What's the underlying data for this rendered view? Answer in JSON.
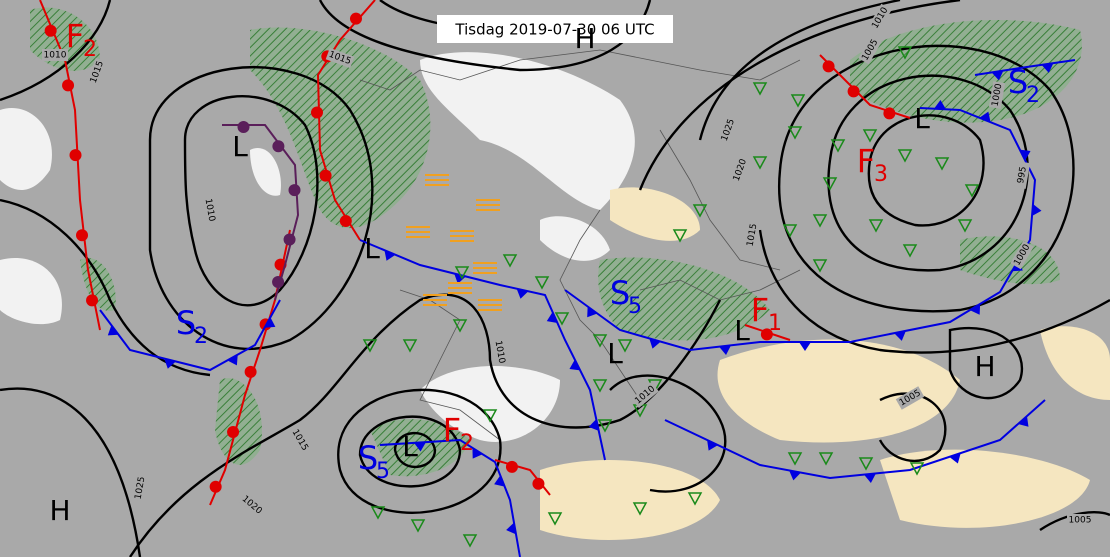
{
  "header": {
    "title": "Tisdag 2019-07-30 06 UTC"
  },
  "pressure_centers": [
    {
      "label": "L"
    },
    {
      "label": "L"
    },
    {
      "label": "L"
    },
    {
      "label": "L"
    },
    {
      "label": "L"
    },
    {
      "label": "L"
    },
    {
      "label": "H"
    },
    {
      "label": "H"
    },
    {
      "label": "H"
    }
  ],
  "front_labels": [
    {
      "text": "F",
      "sub": "2",
      "color": "#e00000"
    },
    {
      "text": "S",
      "sub": "2",
      "color": "#0000e0"
    },
    {
      "text": "S",
      "sub": "5",
      "color": "#0000e0"
    },
    {
      "text": "F",
      "sub": "1",
      "color": "#e00000"
    },
    {
      "text": "F",
      "sub": "3",
      "color": "#e00000"
    },
    {
      "text": "S",
      "sub": "2",
      "color": "#0000e0"
    },
    {
      "text": "F",
      "sub": "2",
      "color": "#e00000"
    },
    {
      "text": "S",
      "sub": "5",
      "color": "#0000e0"
    }
  ],
  "isobar_labels": [
    "1010",
    "1015",
    "1015",
    "1025",
    "1020",
    "1010",
    "1015",
    "1010",
    "1010",
    "1005",
    "1015",
    "1025",
    "1020",
    "1005",
    "1010",
    "1005",
    "1000",
    "995",
    "1000"
  ]
}
